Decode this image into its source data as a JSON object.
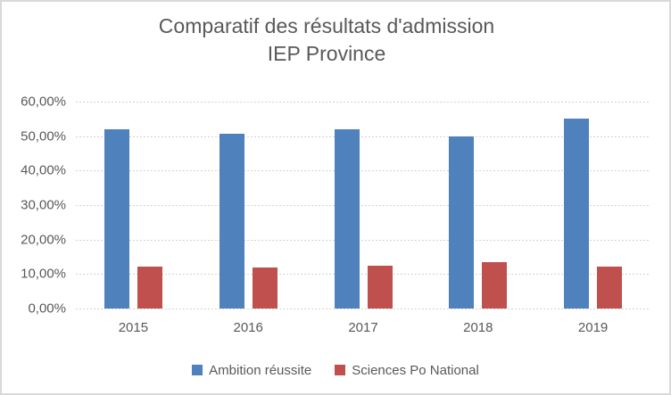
{
  "title": {
    "line1": "Comparatif des résultats d'admission",
    "line2": "IEP Province"
  },
  "y_axis": {
    "tick_labels": [
      "60,00%",
      "50,00%",
      "40,00%",
      "30,00%",
      "20,00%",
      "10,00%",
      "0,00%"
    ]
  },
  "x_axis": {
    "tick_labels": [
      "2015",
      "2016",
      "2017",
      "2018",
      "2019"
    ]
  },
  "legend": {
    "items": [
      {
        "label": "Ambition réussite",
        "color": "#4F81BD"
      },
      {
        "label": "Sciences Po National",
        "color": "#C0504D"
      }
    ]
  },
  "colors": {
    "series_blue": "#4F81BD",
    "series_red": "#C0504D",
    "title_text": "#595959",
    "axis_text": "#595959",
    "gridline": "#D3D3D3",
    "frame_border": "#D9D9D9",
    "background": "#FFFFFF"
  },
  "chart_data": {
    "type": "bar",
    "title": "Comparatif des résultats d'admission IEP Province",
    "categories": [
      "2015",
      "2016",
      "2017",
      "2018",
      "2019"
    ],
    "series": [
      {
        "name": "Ambition réussite",
        "color": "#4F81BD",
        "values": [
          52.0,
          50.6,
          52.0,
          50.0,
          55.0
        ]
      },
      {
        "name": "Sciences Po National",
        "color": "#C0504D",
        "values": [
          12.2,
          11.9,
          12.4,
          13.5,
          12.1
        ]
      }
    ],
    "value_unit": "percent",
    "ylim": [
      0,
      60
    ],
    "y_tick_step": 10,
    "y_tick_format": "percent_fr_2dp",
    "grid": true,
    "legend_position": "bottom"
  }
}
